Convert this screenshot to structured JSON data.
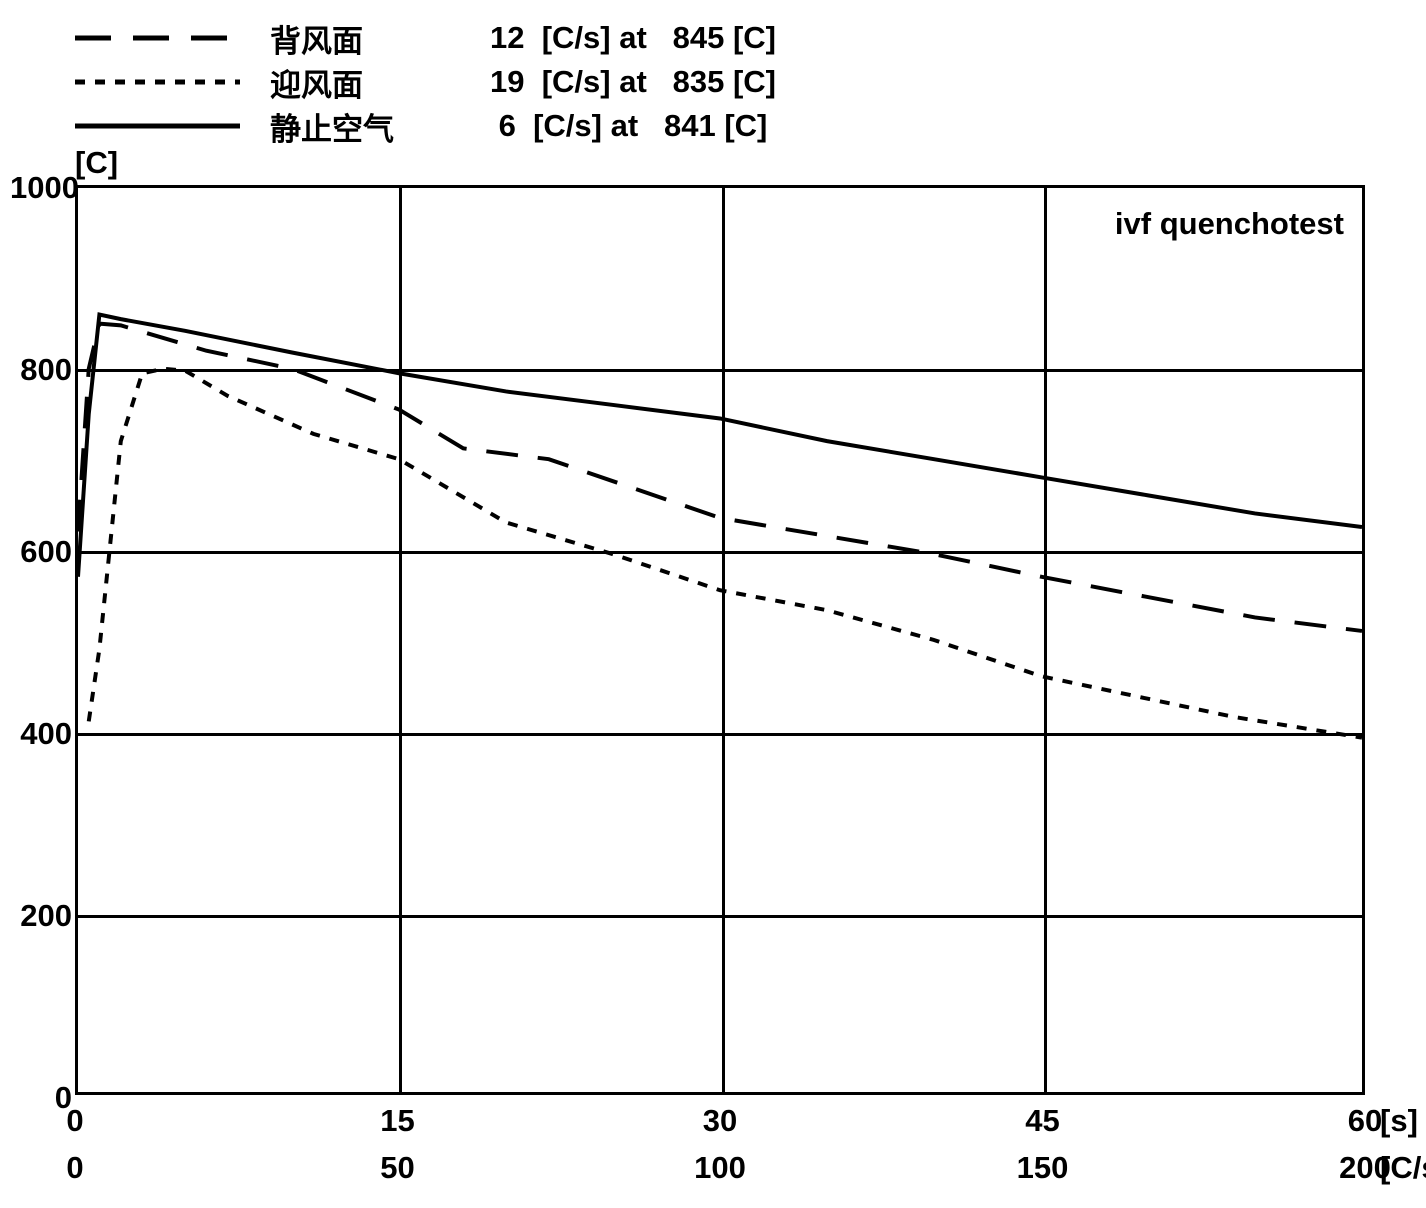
{
  "legend": {
    "items": [
      {
        "label": "背风面",
        "values": "12  [C/s] at   845 [C]",
        "line_type": "long-dash"
      },
      {
        "label": "迎风面",
        "values": "19  [C/s] at   835 [C]",
        "line_type": "short-dash"
      },
      {
        "label": "静止空气",
        "values": " 6  [C/s] at   841 [C]",
        "line_type": "solid"
      }
    ]
  },
  "y_axis": {
    "unit": "[C]",
    "min": 0,
    "max": 1000,
    "ticks": [
      0,
      200,
      400,
      600,
      800,
      1000
    ]
  },
  "x_axis": {
    "primary": {
      "min": 0,
      "max": 60,
      "ticks": [
        0,
        15,
        30,
        45,
        60
      ],
      "unit": "[s]"
    },
    "secondary": {
      "min": 0,
      "max": 200,
      "ticks": [
        0,
        50,
        100,
        150,
        200
      ],
      "unit": "[C/s]"
    }
  },
  "chart": {
    "annotation": "ivf quenchotest",
    "grid_color": "#000000",
    "background_color": "#ffffff",
    "line_color": "#000000",
    "line_width": 4,
    "series": [
      {
        "name": "long-dash",
        "dash": "32,20",
        "points": [
          [
            0,
            620
          ],
          [
            0.5,
            800
          ],
          [
            1,
            850
          ],
          [
            2,
            848
          ],
          [
            6,
            820
          ],
          [
            10,
            800
          ],
          [
            15,
            755
          ],
          [
            18,
            712
          ],
          [
            22,
            700
          ],
          [
            30,
            635
          ],
          [
            40,
            595
          ],
          [
            45,
            570
          ],
          [
            55,
            525
          ],
          [
            60,
            510
          ]
        ]
      },
      {
        "name": "short-dash",
        "dash": "10,10",
        "points": [
          [
            0.5,
            410
          ],
          [
            1,
            490
          ],
          [
            2,
            720
          ],
          [
            3,
            795
          ],
          [
            4,
            800
          ],
          [
            5,
            798
          ],
          [
            7,
            770
          ],
          [
            11,
            728
          ],
          [
            15,
            700
          ],
          [
            20,
            630
          ],
          [
            25,
            595
          ],
          [
            30,
            555
          ],
          [
            35,
            533
          ],
          [
            40,
            500
          ],
          [
            45,
            460
          ],
          [
            54,
            415
          ],
          [
            60,
            392
          ]
        ]
      },
      {
        "name": "solid",
        "dash": "",
        "points": [
          [
            0,
            570
          ],
          [
            0.5,
            750
          ],
          [
            1,
            860
          ],
          [
            2,
            855
          ],
          [
            5,
            842
          ],
          [
            10,
            818
          ],
          [
            15,
            795
          ],
          [
            20,
            775
          ],
          [
            25,
            760
          ],
          [
            30,
            745
          ],
          [
            35,
            720
          ],
          [
            40,
            700
          ],
          [
            45,
            680
          ],
          [
            50,
            660
          ],
          [
            55,
            640
          ],
          [
            60,
            625
          ]
        ]
      }
    ]
  }
}
